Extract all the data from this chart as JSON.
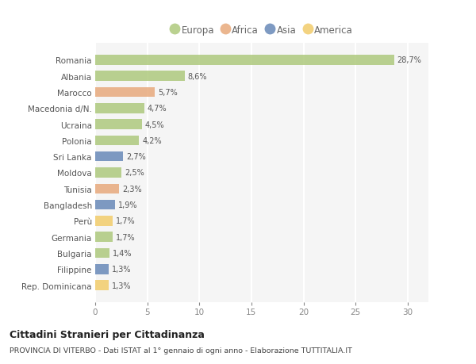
{
  "countries": [
    "Romania",
    "Albania",
    "Marocco",
    "Macedonia d/N.",
    "Ucraina",
    "Polonia",
    "Sri Lanka",
    "Moldova",
    "Tunisia",
    "Bangladesh",
    "Perù",
    "Germania",
    "Bulgaria",
    "Filippine",
    "Rep. Dominicana"
  ],
  "values": [
    28.7,
    8.6,
    5.7,
    4.7,
    4.5,
    4.2,
    2.7,
    2.5,
    2.3,
    1.9,
    1.7,
    1.7,
    1.4,
    1.3,
    1.3
  ],
  "labels": [
    "28,7%",
    "8,6%",
    "5,7%",
    "4,7%",
    "4,5%",
    "4,2%",
    "2,7%",
    "2,5%",
    "2,3%",
    "1,9%",
    "1,7%",
    "1,7%",
    "1,4%",
    "1,3%",
    "1,3%"
  ],
  "continents": [
    "Europa",
    "Europa",
    "Africa",
    "Europa",
    "Europa",
    "Europa",
    "Asia",
    "Europa",
    "Africa",
    "Asia",
    "America",
    "Europa",
    "Europa",
    "Asia",
    "America"
  ],
  "continent_colors": {
    "Europa": "#aec97d",
    "Africa": "#e8a97c",
    "Asia": "#6889b8",
    "America": "#f2cc6b"
  },
  "legend_order": [
    "Europa",
    "Africa",
    "Asia",
    "America"
  ],
  "bg_color": "#ffffff",
  "plot_bg_color": "#f5f5f5",
  "grid_color": "#ffffff",
  "title": "Cittadini Stranieri per Cittadinanza",
  "subtitle": "PROVINCIA DI VITERBO - Dati ISTAT al 1° gennaio di ogni anno - Elaborazione TUTTITALIA.IT",
  "xlim": [
    0,
    32
  ],
  "xticks": [
    0,
    5,
    10,
    15,
    20,
    25,
    30
  ]
}
